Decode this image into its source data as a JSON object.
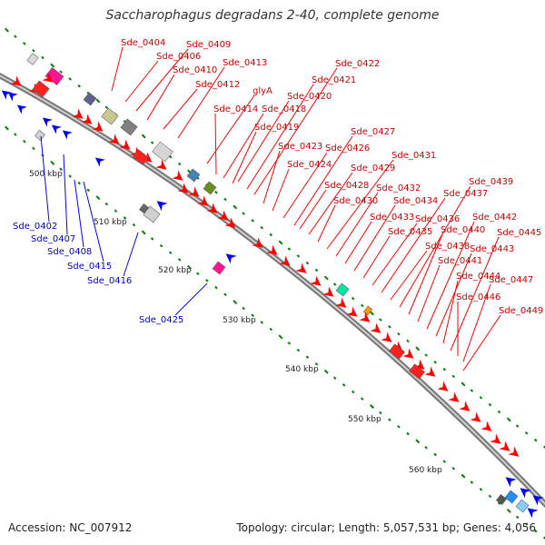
{
  "title": "Saccharophagus degradans 2-40, complete genome",
  "footer": {
    "accession": "Accession: NC_007912",
    "topology": "Topology: circular; Length: 5,057,531 bp; Genes: 4,056"
  },
  "colors": {
    "forward_gene": "#ff0000",
    "reverse_gene": "#0000ff",
    "forward_label": "#cc0000",
    "reverse_label": "#0000cc",
    "backbone": "#888888",
    "tick": "#008000"
  },
  "kbp_ticks": [
    "500 kbp",
    "510 kbp",
    "520 kbp",
    "530 kbp",
    "540 kbp",
    "550 kbp",
    "560 kbp"
  ],
  "forward_labels": [
    "Sde_0404",
    "Sde_0406",
    "Sde_0409",
    "Sde_0410",
    "Sde_0412",
    "Sde_0413",
    "glyA",
    "Sde_0414",
    "Sde_0418",
    "Sde_0419",
    "Sde_0420",
    "Sde_0421",
    "Sde_0422",
    "Sde_0423",
    "Sde_0424",
    "Sde_0426",
    "Sde_0427",
    "Sde_0428",
    "Sde_0429",
    "Sde_0430",
    "Sde_0431",
    "Sde_0432",
    "Sde_0433",
    "Sde_0434",
    "Sde_0435",
    "Sde_0436",
    "Sde_0437",
    "Sde_0438",
    "Sde_0439",
    "Sde_0440",
    "Sde_0441",
    "Sde_0442",
    "Sde_0443",
    "Sde_0444",
    "Sde_0445",
    "Sde_0446",
    "Sde_0447",
    "Sde_0449"
  ],
  "reverse_labels": [
    "Sde_0402",
    "Sde_0407",
    "Sde_0408",
    "Sde_0415",
    "Sde_0416",
    "Sde_0425"
  ]
}
